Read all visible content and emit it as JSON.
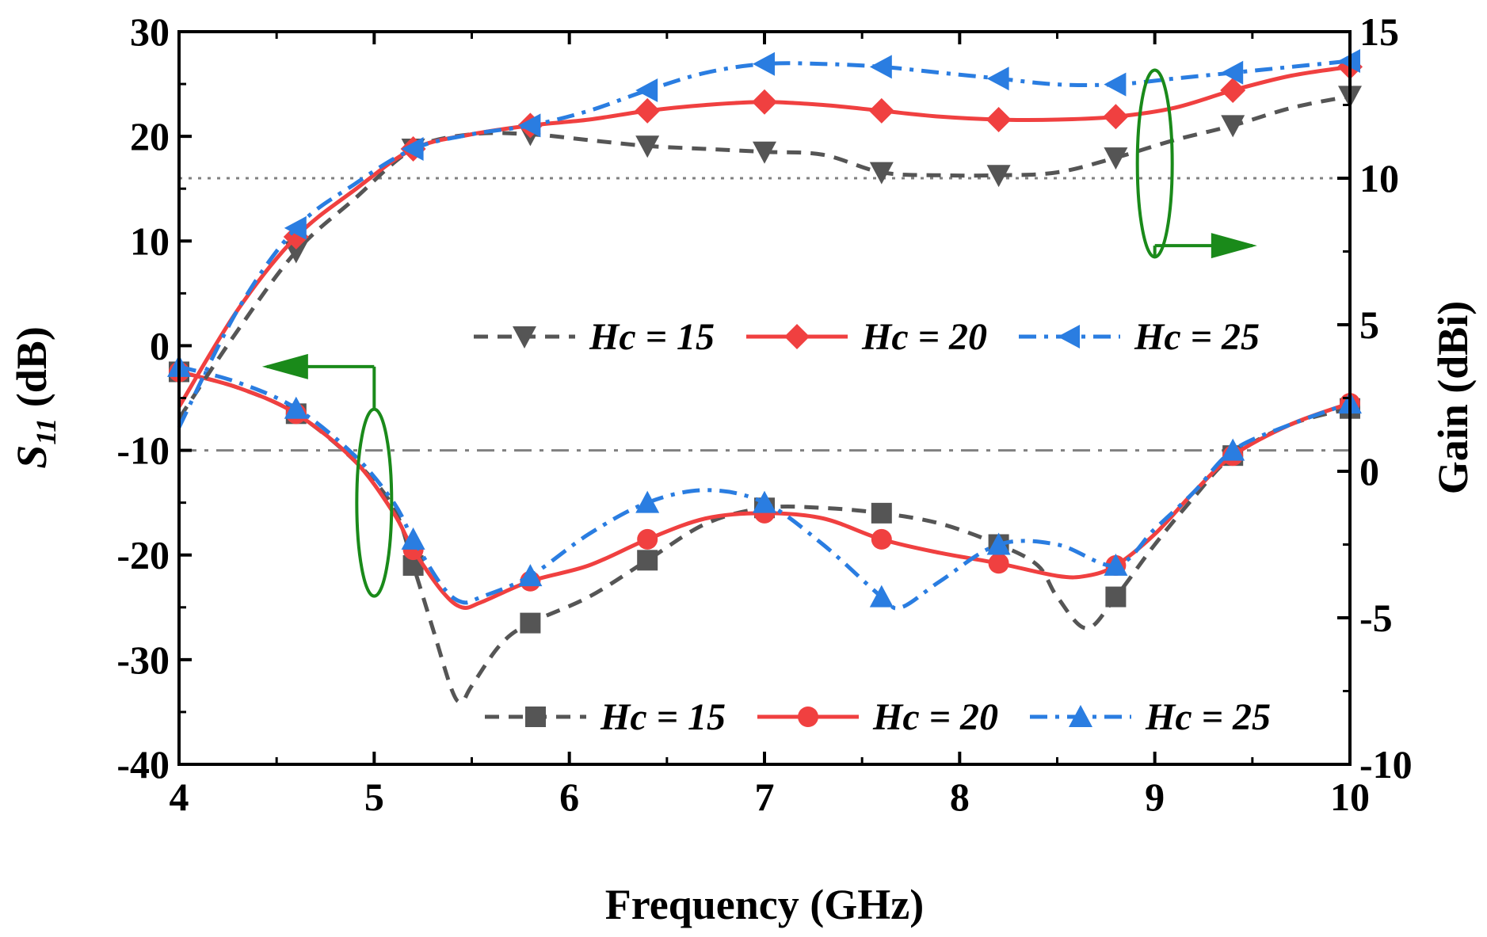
{
  "chart_data": {
    "type": "line",
    "xlabel": "Frequency (GHz)",
    "ylabel_left": {
      "main": "S",
      "sub": "11",
      "suffix": " (dB)"
    },
    "ylabel_right": "Gain (dBi)",
    "xlim": [
      4,
      10
    ],
    "ylim_left": [
      -40,
      30
    ],
    "ylim_right": [
      -10,
      15
    ],
    "xticks": [
      4,
      5,
      6,
      7,
      8,
      9,
      10
    ],
    "yticks_left": [
      -40,
      -30,
      -20,
      -10,
      0,
      10,
      20,
      30
    ],
    "yticks_right": [
      -10,
      -5,
      0,
      5,
      10,
      15
    ],
    "reference_lines": [
      {
        "axis": "left",
        "y": -10,
        "style": "dash-dot",
        "color": "#808080"
      },
      {
        "axis": "right",
        "y": 10,
        "style": "dotted",
        "color": "#808080"
      }
    ],
    "series": [
      {
        "name": "Hc = 15",
        "axis": "left",
        "color": "#555555",
        "dash": "dashed",
        "marker": "square",
        "x": [
          4.0,
          4.3,
          4.6,
          4.9,
          5.1,
          5.2,
          5.3,
          5.4,
          5.45,
          5.5,
          5.65,
          5.8,
          6.1,
          6.4,
          6.7,
          7.0,
          7.3,
          7.6,
          7.9,
          8.2,
          8.4,
          8.5,
          8.65,
          8.8,
          9.0,
          9.2,
          9.4,
          9.7,
          10.0
        ],
        "y": [
          -2.5,
          -4.0,
          -6.5,
          -11.0,
          -15.5,
          -21.0,
          -27.0,
          -33.0,
          -34.0,
          -32.5,
          -28.5,
          -26.5,
          -24.0,
          -20.5,
          -17.0,
          -15.5,
          -15.5,
          -16.0,
          -17.0,
          -19.0,
          -21.0,
          -24.0,
          -27.0,
          -24.0,
          -19.0,
          -14.5,
          -10.5,
          -7.5,
          -6.0
        ],
        "markers_x": [
          4.0,
          4.6,
          5.2,
          5.8,
          6.4,
          7.0,
          7.6,
          8.2,
          8.8,
          9.4,
          10.0
        ]
      },
      {
        "name": "Hc = 20",
        "axis": "left",
        "color": "#f04040",
        "dash": "solid",
        "marker": "circle",
        "x": [
          4.0,
          4.3,
          4.6,
          4.9,
          5.1,
          5.2,
          5.35,
          5.45,
          5.55,
          5.8,
          6.1,
          6.4,
          6.7,
          7.0,
          7.3,
          7.6,
          7.9,
          8.2,
          8.5,
          8.65,
          8.8,
          9.0,
          9.2,
          9.4,
          9.7,
          10.0
        ],
        "y": [
          -2.5,
          -4.0,
          -6.5,
          -11.0,
          -16.0,
          -19.5,
          -23.5,
          -25.0,
          -24.5,
          -22.5,
          -21.0,
          -18.5,
          -16.5,
          -16.0,
          -16.5,
          -18.5,
          -19.8,
          -20.8,
          -22.0,
          -22.0,
          -21.0,
          -18.0,
          -14.0,
          -10.5,
          -7.5,
          -5.5
        ],
        "markers_x": [
          4.0,
          4.6,
          5.2,
          5.8,
          6.4,
          7.0,
          7.6,
          8.2,
          8.8,
          9.4,
          10.0
        ]
      },
      {
        "name": "Hc = 25",
        "axis": "left",
        "color": "#2a7de1",
        "dash": "dash-dot",
        "marker": "triangle-up",
        "x": [
          4.0,
          4.3,
          4.6,
          4.9,
          5.1,
          5.2,
          5.35,
          5.45,
          5.55,
          5.8,
          6.1,
          6.4,
          6.7,
          7.0,
          7.3,
          7.6,
          7.7,
          7.9,
          8.2,
          8.5,
          8.8,
          9.0,
          9.2,
          9.4,
          9.7,
          10.0
        ],
        "y": [
          -2.0,
          -3.5,
          -6.0,
          -10.5,
          -15.0,
          -18.5,
          -23.0,
          -24.5,
          -24.0,
          -22.0,
          -18.0,
          -15.0,
          -13.8,
          -15.0,
          -19.0,
          -24.0,
          -25.0,
          -22.5,
          -19.0,
          -19.0,
          -21.0,
          -17.5,
          -14.0,
          -10.0,
          -7.5,
          -5.5
        ],
        "markers_x": [
          4.0,
          4.6,
          5.2,
          5.8,
          6.4,
          7.0,
          7.6,
          8.2,
          8.8,
          9.4,
          10.0
        ]
      },
      {
        "name": "Hc = 15",
        "axis": "right",
        "color": "#555555",
        "dash": "dashed",
        "marker": "triangle-down",
        "x": [
          4.0,
          4.3,
          4.6,
          4.9,
          5.2,
          5.5,
          5.8,
          6.1,
          6.4,
          6.7,
          7.0,
          7.3,
          7.6,
          7.9,
          8.2,
          8.5,
          8.8,
          9.1,
          9.4,
          9.7,
          10.0
        ],
        "y": [
          1.8,
          4.8,
          7.5,
          9.3,
          11.0,
          11.5,
          11.5,
          11.3,
          11.1,
          11.0,
          10.9,
          10.8,
          10.2,
          10.1,
          10.1,
          10.2,
          10.7,
          11.3,
          11.8,
          12.4,
          12.8
        ],
        "markers_x": [
          4.6,
          5.2,
          5.8,
          6.4,
          7.0,
          7.6,
          8.2,
          8.8,
          9.4,
          10.0
        ]
      },
      {
        "name": "Hc = 20",
        "axis": "right",
        "color": "#f04040",
        "dash": "solid",
        "marker": "diamond",
        "x": [
          4.0,
          4.3,
          4.6,
          4.9,
          5.2,
          5.5,
          5.8,
          6.1,
          6.4,
          6.7,
          7.0,
          7.3,
          7.6,
          7.9,
          8.2,
          8.5,
          8.8,
          9.1,
          9.4,
          9.7,
          10.0
        ],
        "y": [
          2.2,
          5.5,
          8.0,
          9.6,
          11.0,
          11.5,
          11.8,
          12.0,
          12.3,
          12.5,
          12.6,
          12.5,
          12.3,
          12.1,
          12.0,
          12.0,
          12.1,
          12.4,
          13.0,
          13.5,
          13.8
        ],
        "markers_x": [
          4.6,
          5.2,
          5.8,
          6.4,
          7.0,
          7.6,
          8.2,
          8.8,
          9.4,
          10.0
        ]
      },
      {
        "name": "Hc = 25",
        "axis": "right",
        "color": "#2a7de1",
        "dash": "dash-dot",
        "marker": "triangle-left",
        "x": [
          4.0,
          4.3,
          4.6,
          4.9,
          5.2,
          5.5,
          5.8,
          6.1,
          6.4,
          6.7,
          7.0,
          7.3,
          7.6,
          7.9,
          8.2,
          8.5,
          8.8,
          9.1,
          9.4,
          9.7,
          10.0
        ],
        "y": [
          1.5,
          5.5,
          8.3,
          9.8,
          11.0,
          11.5,
          11.8,
          12.3,
          13.0,
          13.6,
          13.9,
          13.9,
          13.8,
          13.6,
          13.4,
          13.2,
          13.2,
          13.4,
          13.6,
          13.8,
          14.0
        ],
        "markers_x": [
          4.6,
          5.2,
          5.8,
          6.4,
          7.0,
          7.6,
          8.2,
          8.8,
          9.4,
          10.0
        ]
      }
    ],
    "legends": [
      {
        "placement": "middle-center",
        "entries": [
          "Hc = 15",
          "Hc = 20",
          "Hc = 25"
        ],
        "series_index": [
          3,
          4,
          5
        ]
      },
      {
        "placement": "bottom-center",
        "entries": [
          "Hc = 15",
          "Hc = 20",
          "Hc = 25"
        ],
        "series_index": [
          0,
          1,
          2
        ]
      }
    ],
    "annotations": [
      {
        "type": "ellipse-arrow",
        "target": "left-axis",
        "direction": "left",
        "color": "#1a8a1a"
      },
      {
        "type": "ellipse-arrow",
        "target": "right-axis",
        "direction": "right",
        "color": "#1a8a1a"
      }
    ],
    "grid": false
  }
}
